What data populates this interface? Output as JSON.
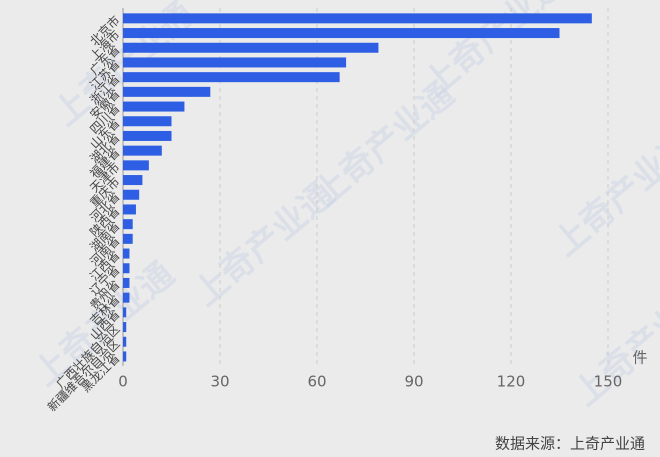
{
  "chart_data": {
    "type": "bar",
    "orientation": "horizontal",
    "categories": [
      "北京市",
      "上海市",
      "广东省",
      "江苏省",
      "浙江省",
      "安徽省",
      "四川省",
      "山东省",
      "湖北省",
      "福建省",
      "天津市",
      "重庆市",
      "河北省",
      "陕西省",
      "湖南省",
      "河南省",
      "江西省",
      "辽宁省",
      "贵州省",
      "吉林省",
      "山西省",
      "广西壮族自治区",
      "新疆维吾尔自治区",
      "黑龙江省"
    ],
    "values": [
      145,
      135,
      79,
      69,
      67,
      27,
      19,
      15,
      15,
      12,
      8,
      6,
      5,
      4,
      3,
      3,
      2,
      2,
      2,
      2,
      1,
      1,
      1,
      1
    ],
    "color": "#2e5ee3",
    "xlim": [
      0,
      150
    ],
    "xticks": [
      0,
      30,
      60,
      90,
      120,
      150
    ],
    "grid": true,
    "unit": "件",
    "source": "数据来源：上奇产业通",
    "watermark": "上奇产业通"
  }
}
